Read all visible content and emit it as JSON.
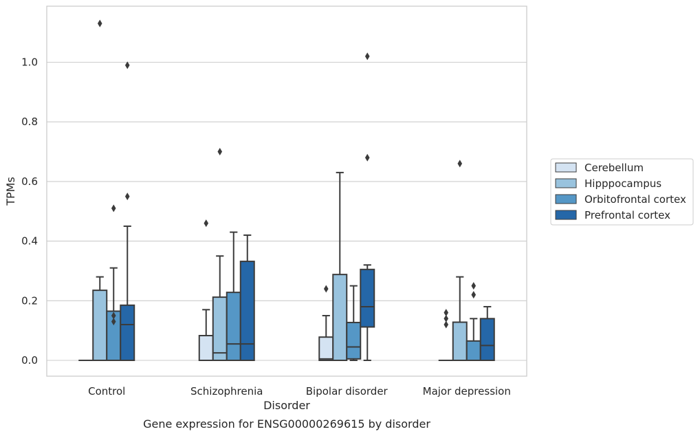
{
  "chart_data": {
    "type": "box",
    "caption": "Gene expression for ENSG00000269615 by disorder",
    "xlabel": "Disorder",
    "ylabel": "TPMs",
    "ylim": [
      -0.055,
      1.19
    ],
    "yticks": [
      "0.0",
      "0.2",
      "0.4",
      "0.6",
      "0.8",
      "1.0"
    ],
    "ytick_values": [
      0.0,
      0.2,
      0.4,
      0.6,
      0.8,
      1.0
    ],
    "grid": true,
    "legend_position": "right",
    "categories": [
      "Control",
      "Schizophrenia",
      "Bipolar disorder",
      "Major depression"
    ],
    "series": [
      {
        "name": "Cerebellum",
        "color": "#d4e3f2",
        "boxes": [
          {
            "q1": 0,
            "median": 0,
            "q3": 0,
            "whislo": 0,
            "whishi": 0,
            "fliers": []
          },
          {
            "q1": 0,
            "median": 0,
            "q3": 0.083,
            "whislo": 0,
            "whishi": 0.17,
            "fliers": [
              0.46
            ]
          },
          {
            "q1": 0,
            "median": 0.005,
            "q3": 0.078,
            "whislo": 0,
            "whishi": 0.15,
            "fliers": [
              0.24
            ]
          },
          {
            "q1": 0,
            "median": 0,
            "q3": 0,
            "whislo": 0,
            "whishi": 0,
            "fliers": [
              0.12,
              0.14,
              0.16
            ]
          }
        ]
      },
      {
        "name": "Hipppocampus",
        "color": "#99c3de",
        "boxes": [
          {
            "q1": 0,
            "median": 0,
            "q3": 0.235,
            "whislo": 0,
            "whishi": 0.28,
            "fliers": [
              1.13
            ]
          },
          {
            "q1": 0,
            "median": 0.025,
            "q3": 0.212,
            "whislo": 0,
            "whishi": 0.35,
            "fliers": [
              0.7
            ]
          },
          {
            "q1": 0,
            "median": 0,
            "q3": 0.288,
            "whislo": 0,
            "whishi": 0.63,
            "fliers": []
          },
          {
            "q1": 0,
            "median": 0,
            "q3": 0.128,
            "whislo": 0,
            "whishi": 0.28,
            "fliers": [
              0.66
            ]
          }
        ]
      },
      {
        "name": "Orbitofrontal cortex",
        "color": "#5597c6",
        "boxes": [
          {
            "q1": 0,
            "median": 0,
            "q3": 0.165,
            "whislo": 0,
            "whishi": 0.31,
            "fliers": [
              0.13,
              0.15,
              0.51
            ]
          },
          {
            "q1": 0,
            "median": 0.055,
            "q3": 0.228,
            "whislo": 0,
            "whishi": 0.43,
            "fliers": []
          },
          {
            "q1": 0.005,
            "median": 0.045,
            "q3": 0.127,
            "whislo": 0,
            "whishi": 0.25,
            "fliers": []
          },
          {
            "q1": 0,
            "median": 0,
            "q3": 0.065,
            "whislo": 0,
            "whishi": 0.14,
            "fliers": [
              0.22,
              0.25
            ]
          }
        ]
      },
      {
        "name": "Prefrontal cortex",
        "color": "#2567a8",
        "boxes": [
          {
            "q1": 0,
            "median": 0.12,
            "q3": 0.185,
            "whislo": 0,
            "whishi": 0.45,
            "fliers": [
              0.55,
              0.99
            ]
          },
          {
            "q1": 0,
            "median": 0.055,
            "q3": 0.332,
            "whislo": 0,
            "whishi": 0.42,
            "fliers": []
          },
          {
            "q1": 0.112,
            "median": 0.18,
            "q3": 0.305,
            "whislo": 0,
            "whishi": 0.32,
            "fliers": [
              0.68,
              1.02
            ]
          },
          {
            "q1": 0,
            "median": 0.05,
            "q3": 0.14,
            "whislo": 0,
            "whishi": 0.18,
            "fliers": []
          }
        ]
      }
    ]
  }
}
